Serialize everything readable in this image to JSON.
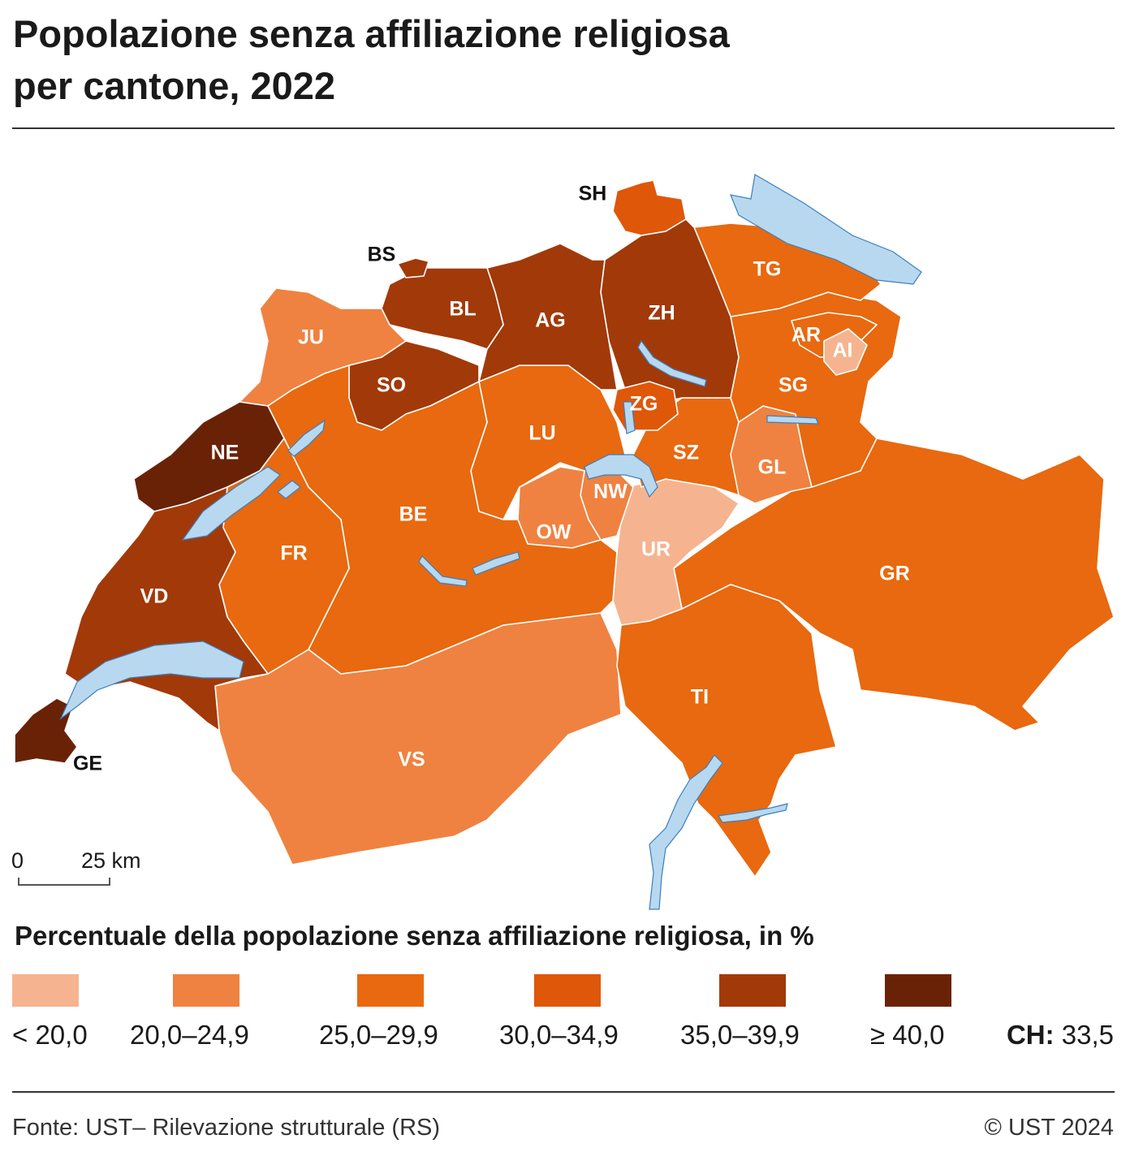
{
  "title": {
    "line1": "Popolazione senza affiliazione religiosa",
    "line2": "per cantone, 2022"
  },
  "scale_bar": {
    "start": "0",
    "end": "25 km"
  },
  "legend": {
    "title": "Percentuale della popolazione senza affiliazione religiosa, in %",
    "classes": [
      {
        "label": "< 20,0",
        "color": "#f5b48f"
      },
      {
        "label": "20,0–24,9",
        "color": "#ef8240"
      },
      {
        "label": "25,0–29,9",
        "color": "#e8690f"
      },
      {
        "label": "30,0–34,9",
        "color": "#df5709"
      },
      {
        "label": "35,0–39,9",
        "color": "#a23909"
      },
      {
        "label": "≥ 40,0",
        "color": "#6a2206"
      }
    ],
    "ch_label": "CH:",
    "ch_value": "33,5"
  },
  "colors": {
    "lake": "#b8d8ef",
    "border": "#ffffff"
  },
  "cantons": [
    {
      "code": "GE",
      "class": 5
    },
    {
      "code": "NE",
      "class": 5
    },
    {
      "code": "VD",
      "class": 4
    },
    {
      "code": "BS",
      "class": 4
    },
    {
      "code": "BL",
      "class": 4
    },
    {
      "code": "SO",
      "class": 4
    },
    {
      "code": "AG",
      "class": 4
    },
    {
      "code": "ZH",
      "class": 4
    },
    {
      "code": "SH",
      "class": 3
    },
    {
      "code": "TG",
      "class": 2
    },
    {
      "code": "AR",
      "class": 2
    },
    {
      "code": "AI",
      "class": 0
    },
    {
      "code": "SG",
      "class": 2
    },
    {
      "code": "JU",
      "class": 1
    },
    {
      "code": "FR",
      "class": 2
    },
    {
      "code": "BE",
      "class": 2
    },
    {
      "code": "LU",
      "class": 2
    },
    {
      "code": "ZG",
      "class": 3
    },
    {
      "code": "SZ",
      "class": 2
    },
    {
      "code": "GL",
      "class": 1
    },
    {
      "code": "NW",
      "class": 1
    },
    {
      "code": "OW",
      "class": 1
    },
    {
      "code": "UR",
      "class": 0
    },
    {
      "code": "GR",
      "class": 2
    },
    {
      "code": "TI",
      "class": 2
    },
    {
      "code": "VS",
      "class": 1
    }
  ],
  "footer": {
    "source": "Fonte: UST– Rilevazione strutturale (RS)",
    "copyright": "© UST 2024"
  }
}
